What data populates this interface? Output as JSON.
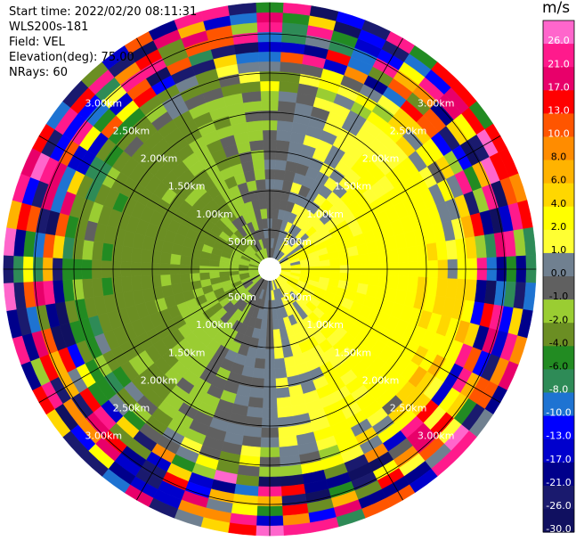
{
  "header": {
    "start_time": "Start time: 2022/02/20 08:11:31",
    "instrument": "WLS200s-181",
    "field": "Field: VEL",
    "elevation": "Elevation(deg): 75.00",
    "nrays": "NRays: 60"
  },
  "colorbar": {
    "unit": "m/s",
    "labels": [
      "26.0",
      "21.0",
      "17.0",
      "13.0",
      "10.0",
      "8.0",
      "6.0",
      "4.0",
      "2.0",
      "1.0",
      "0.0",
      "-1.0",
      "-2.0",
      "-4.0",
      "-6.0",
      "-8.0",
      "-10.0",
      "-13.0",
      "-17.0",
      "-21.0",
      "-26.0",
      "-30.0"
    ],
    "colors": [
      "#ff66cc",
      "#ff1a8c",
      "#e8006a",
      "#ff0000",
      "#ff5500",
      "#ff8c00",
      "#ffb300",
      "#ffd700",
      "#ffff00",
      "#ffff33",
      "#708090",
      "#606060",
      "#9acd32",
      "#6b8e23",
      "#228b22",
      "#2e8b57",
      "#1e73d2",
      "#0000ff",
      "#0000cd",
      "#00008b",
      "#1a1a6e",
      "#101060"
    ]
  },
  "chart_data": {
    "type": "ppi_polar",
    "field": "VEL",
    "unit": "m/s",
    "n_rays": 60,
    "range_rings_km": [
      0.5,
      1.0,
      1.5,
      2.0,
      2.5,
      3.0
    ],
    "ring_labels": [
      "500m",
      "1.00km",
      "1.50km",
      "2.00km",
      "2.50km",
      "3.00km"
    ],
    "max_range_km": 3.4,
    "spokes_deg": [
      0,
      30,
      60,
      90,
      120,
      150,
      180,
      210,
      240,
      270,
      300,
      330
    ],
    "velocity_pattern": {
      "inner_positive_sector": "north-east to south-east, about +1 to +2 m/s (yellow)",
      "inner_negative_sector": "west, about -1 to -4 m/s (green)",
      "outer_rings": "noisy, all colours, beyond about 2.8 km"
    }
  }
}
